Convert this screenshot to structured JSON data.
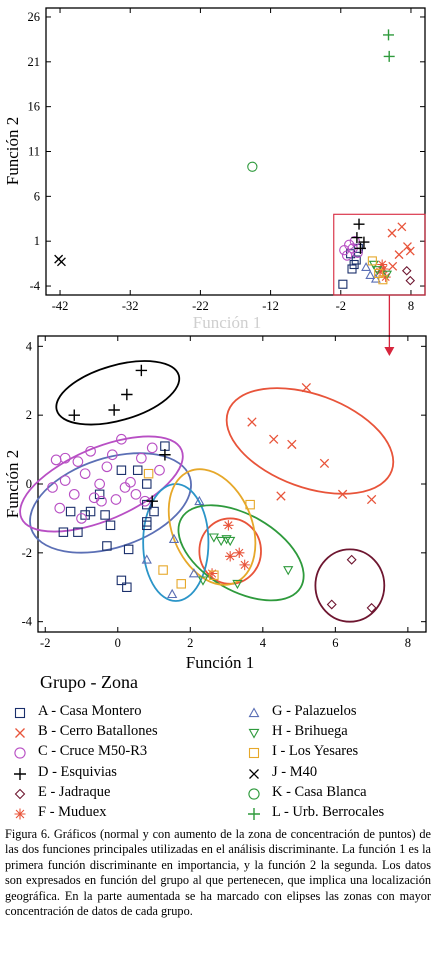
{
  "figure": {
    "legend_title": "Grupo - Zona",
    "caption": "Figura 6. Gráficos (normal y con aumento de la zona de concentración de puntos) de las dos funciones principales utilizadas en el análisis discriminante. La función 1 es la primera función discriminante en importancia, y la función 2 la segunda. Los datos son expresados en función del grupo al que pertenecen, que implica una localización geográfica. En la parte aumentada se ha marcado con elipses las zonas con mayor concentración de datos de cada grupo."
  },
  "legend": [
    {
      "label": "A - Casa Montero",
      "marker": "square",
      "color": "#1a2f6b"
    },
    {
      "label": "B - Cerro Batallones",
      "marker": "x",
      "color": "#e8543a"
    },
    {
      "label": "C - Cruce M50-R3",
      "marker": "circle",
      "color": "#b84fc4"
    },
    {
      "label": "D - Esquivias",
      "marker": "plus",
      "color": "#000000"
    },
    {
      "label": "E - Jadraque",
      "marker": "diamond",
      "color": "#6e1630"
    },
    {
      "label": "F - Muduex",
      "marker": "asterisk",
      "color": "#e8543a"
    },
    {
      "label": "G - Palazuelos",
      "marker": "triangle-up",
      "color": "#5b6fb5"
    },
    {
      "label": "H - Brihuega",
      "marker": "triangle-down",
      "color": "#2e9a3c"
    },
    {
      "label": "I - Los Yesares",
      "marker": "square",
      "color": "#e6a82a"
    },
    {
      "label": "J - M40",
      "marker": "x",
      "color": "#000000"
    },
    {
      "label": "K - Casa Blanca",
      "marker": "circle",
      "color": "#2e9a3c"
    },
    {
      "label": "L - Urb. Berrocales",
      "marker": "plus",
      "color": "#2e9a3c"
    }
  ],
  "chart_data": [
    {
      "type": "scatter",
      "xlabel": "Función 1",
      "ylabel": "Función 2",
      "xlim": [
        -44,
        10
      ],
      "ylim": [
        -5,
        27
      ],
      "xticks": [
        -42,
        -32,
        -22,
        -12,
        -2,
        8
      ],
      "yticks": [
        -4,
        1,
        6,
        11,
        16,
        21,
        26
      ],
      "zoom_box": {
        "x": [
          -3,
          10
        ],
        "y": [
          -5,
          4
        ]
      },
      "series": [
        {
          "name": "J - M40",
          "marker": "x",
          "color": "#000000",
          "points": [
            [
              -42.2,
              -1.0
            ],
            [
              -41.8,
              -1.3
            ]
          ]
        },
        {
          "name": "K - Casa Blanca",
          "marker": "circle",
          "color": "#2e9a3c",
          "points": [
            [
              -14.6,
              9.3
            ]
          ]
        },
        {
          "name": "L - Urb. Berrocales",
          "marker": "plus",
          "color": "#2e9a3c",
          "points": [
            [
              4.8,
              24.0
            ],
            [
              4.9,
              21.6
            ]
          ]
        },
        {
          "name": "A - Casa Montero",
          "marker": "square",
          "color": "#1a2f6b",
          "points": [
            [
              -1.7,
              -3.8
            ],
            [
              -0.4,
              -2.1
            ],
            [
              0.2,
              -1.1
            ],
            [
              -0.6,
              -0.4
            ],
            [
              0.5,
              0.2
            ],
            [
              -0.1,
              -1.6
            ]
          ]
        },
        {
          "name": "B - Cerro Batallones",
          "marker": "x",
          "color": "#e8543a",
          "points": [
            [
              5.3,
              1.9
            ],
            [
              6.7,
              2.6
            ],
            [
              7.5,
              0.4
            ],
            [
              6.3,
              -0.5
            ],
            [
              7.9,
              -0.1
            ],
            [
              5.4,
              -1.8
            ]
          ]
        },
        {
          "name": "C - Cruce M50-R3",
          "marker": "circle",
          "color": "#b84fc4",
          "points": [
            [
              -1.5,
              0.0
            ],
            [
              -0.8,
              0.6
            ],
            [
              -0.3,
              0.2
            ],
            [
              0.4,
              -0.3
            ],
            [
              -1.1,
              -0.6
            ],
            [
              0.0,
              1.0
            ]
          ]
        },
        {
          "name": "D - Esquivias",
          "marker": "plus",
          "color": "#000000",
          "points": [
            [
              0.6,
              2.9
            ],
            [
              0.3,
              1.4
            ],
            [
              1.3,
              0.9
            ],
            [
              0.8,
              0.2
            ]
          ]
        },
        {
          "name": "E - Jadraque",
          "marker": "diamond",
          "color": "#6e1630",
          "points": [
            [
              7.4,
              -2.3
            ],
            [
              7.9,
              -3.4
            ]
          ]
        },
        {
          "name": "F - Muduex",
          "marker": "asterisk",
          "color": "#e8543a",
          "points": [
            [
              3.6,
              -2.4
            ],
            [
              4.1,
              -2.1
            ],
            [
              4.4,
              -3.0
            ],
            [
              3.9,
              -1.6
            ]
          ]
        },
        {
          "name": "G - Palazuelos",
          "marker": "triangle-up",
          "color": "#5b6fb5",
          "points": [
            [
              2.2,
              -2.8
            ],
            [
              3.0,
              -3.2
            ],
            [
              1.6,
              -1.9
            ]
          ]
        },
        {
          "name": "H - Brihuega",
          "marker": "triangle-down",
          "color": "#2e9a3c",
          "points": [
            [
              3.2,
              -2.2
            ],
            [
              4.6,
              -2.7
            ],
            [
              2.7,
              -1.6
            ]
          ]
        },
        {
          "name": "I - Los Yesares",
          "marker": "square",
          "color": "#e6a82a",
          "points": [
            [
              2.5,
              -1.2
            ],
            [
              3.4,
              -2.6
            ],
            [
              4.0,
              -3.3
            ]
          ]
        }
      ]
    },
    {
      "type": "scatter",
      "xlabel": "Función 1",
      "ylabel": "Función 2",
      "xlim": [
        -2.2,
        8.5
      ],
      "ylim": [
        -4.3,
        4.3
      ],
      "xticks": [
        -2,
        0,
        2,
        4,
        6,
        8
      ],
      "yticks": [
        -4,
        -2,
        0,
        2,
        4
      ],
      "series": [
        {
          "name": "A - Casa Montero",
          "marker": "square",
          "color": "#1a2f6b",
          "points": [
            [
              -1.5,
              -1.4
            ],
            [
              -1.3,
              -0.8
            ],
            [
              -1.1,
              -1.4
            ],
            [
              -0.9,
              -0.9
            ],
            [
              -0.75,
              -0.8
            ],
            [
              -0.5,
              -0.3
            ],
            [
              -0.35,
              -0.9
            ],
            [
              -0.2,
              -1.2
            ],
            [
              -0.3,
              -1.8
            ],
            [
              0.1,
              0.4
            ],
            [
              0.55,
              0.4
            ],
            [
              0.3,
              -1.9
            ],
            [
              0.1,
              -2.8
            ],
            [
              0.25,
              -3.0
            ],
            [
              0.8,
              -1.1
            ],
            [
              0.8,
              -1.2
            ],
            [
              1.0,
              -0.8
            ],
            [
              1.3,
              1.1
            ],
            [
              0.8,
              0.0
            ],
            [
              0.8,
              -0.6
            ]
          ]
        },
        {
          "name": "B - Cerro Batallones",
          "marker": "x",
          "color": "#e8543a",
          "points": [
            [
              3.7,
              1.8
            ],
            [
              4.3,
              1.3
            ],
            [
              4.8,
              1.15
            ],
            [
              5.2,
              2.8
            ],
            [
              5.7,
              0.6
            ],
            [
              4.5,
              -0.35
            ],
            [
              6.2,
              -0.3
            ],
            [
              7.0,
              -0.45
            ]
          ]
        },
        {
          "name": "C - Cruce M50-R3",
          "marker": "circle",
          "color": "#b84fc4",
          "points": [
            [
              -1.8,
              -0.1
            ],
            [
              -1.7,
              0.7
            ],
            [
              -1.6,
              -0.7
            ],
            [
              -1.45,
              0.1
            ],
            [
              -1.2,
              -0.3
            ],
            [
              -1.1,
              0.65
            ],
            [
              -1.0,
              -1.0
            ],
            [
              -0.9,
              0.3
            ],
            [
              -0.75,
              0.95
            ],
            [
              -0.65,
              -0.4
            ],
            [
              -0.5,
              0.0
            ],
            [
              -0.45,
              -0.5
            ],
            [
              -0.3,
              0.5
            ],
            [
              -0.15,
              0.85
            ],
            [
              -0.05,
              -0.45
            ],
            [
              0.1,
              1.3
            ],
            [
              0.2,
              -0.1
            ],
            [
              0.35,
              0.05
            ],
            [
              0.5,
              -0.3
            ],
            [
              0.65,
              0.75
            ],
            [
              0.75,
              -0.5
            ],
            [
              0.95,
              1.05
            ],
            [
              1.15,
              0.4
            ],
            [
              -1.45,
              0.75
            ]
          ]
        },
        {
          "name": "D - Esquivias",
          "marker": "plus",
          "color": "#000000",
          "points": [
            [
              -1.2,
              2.0
            ],
            [
              -0.1,
              2.15
            ],
            [
              0.25,
              2.6
            ],
            [
              0.65,
              3.3
            ],
            [
              1.3,
              0.85
            ],
            [
              0.95,
              -0.5
            ]
          ]
        },
        {
          "name": "E - Jadraque",
          "marker": "diamond",
          "color": "#6e1630",
          "points": [
            [
              6.45,
              -2.2
            ],
            [
              5.9,
              -3.5
            ],
            [
              7.0,
              -3.6
            ]
          ]
        },
        {
          "name": "F - Muduex",
          "marker": "asterisk",
          "color": "#e8543a",
          "points": [
            [
              2.6,
              -2.6
            ],
            [
              3.05,
              -1.2
            ],
            [
              3.1,
              -2.1
            ],
            [
              3.35,
              -2.0
            ],
            [
              3.5,
              -2.35
            ]
          ]
        },
        {
          "name": "G - Palazuelos",
          "marker": "triangle-up",
          "color": "#5b6fb5",
          "points": [
            [
              0.8,
              -2.2
            ],
            [
              1.55,
              -1.6
            ],
            [
              1.5,
              -3.2
            ],
            [
              2.1,
              -2.6
            ],
            [
              2.25,
              -0.5
            ]
          ]
        },
        {
          "name": "H - Brihuega",
          "marker": "triangle-down",
          "color": "#2e9a3c",
          "points": [
            [
              2.65,
              -1.55
            ],
            [
              2.85,
              -1.65
            ],
            [
              3.0,
              -1.6
            ],
            [
              3.1,
              -1.65
            ],
            [
              2.35,
              -2.8
            ],
            [
              3.3,
              -2.9
            ],
            [
              4.7,
              -2.5
            ]
          ]
        },
        {
          "name": "I - Los Yesares",
          "marker": "square",
          "color": "#e6a82a",
          "points": [
            [
              0.85,
              0.3
            ],
            [
              1.25,
              -2.5
            ],
            [
              1.75,
              -2.9
            ],
            [
              2.65,
              -2.65
            ],
            [
              3.65,
              -0.6
            ]
          ]
        }
      ],
      "ellipses": [
        {
          "group": "A/C",
          "color": "#5b6fb5",
          "cx": -0.2,
          "cy": -0.55,
          "rx": 2.3,
          "ry": 1.3,
          "angle_deg": 18
        },
        {
          "group": "C",
          "color": "#b84fc4",
          "cx": -0.45,
          "cy": 0.0,
          "rx": 2.4,
          "ry": 1.05,
          "angle_deg": 23
        },
        {
          "group": "D",
          "color": "#000000",
          "cx": 0.0,
          "cy": 2.65,
          "rx": 1.75,
          "ry": 0.8,
          "angle_deg": 16
        },
        {
          "group": "B",
          "color": "#e8543a",
          "cx": 5.3,
          "cy": 1.25,
          "rx": 2.4,
          "ry": 1.35,
          "angle_deg": -20
        },
        {
          "group": "E",
          "color": "#6e1630",
          "cx": 6.4,
          "cy": -2.95,
          "rx": 0.95,
          "ry": 1.05,
          "angle_deg": 0
        },
        {
          "group": "F",
          "color": "#e8543a",
          "cx": 3.1,
          "cy": -1.95,
          "rx": 0.85,
          "ry": 0.95,
          "angle_deg": 0
        },
        {
          "group": "G",
          "color": "#2b95c8",
          "cx": 1.6,
          "cy": -1.7,
          "rx": 0.9,
          "ry": 1.7,
          "angle_deg": 0
        },
        {
          "group": "H",
          "color": "#2e9a3c",
          "cx": 3.4,
          "cy": -2.0,
          "rx": 1.9,
          "ry": 1.1,
          "angle_deg": -30
        },
        {
          "group": "I",
          "color": "#e6a82a",
          "cx": 2.6,
          "cy": -1.25,
          "rx": 1.1,
          "ry": 1.75,
          "angle_deg": 22
        }
      ]
    }
  ]
}
